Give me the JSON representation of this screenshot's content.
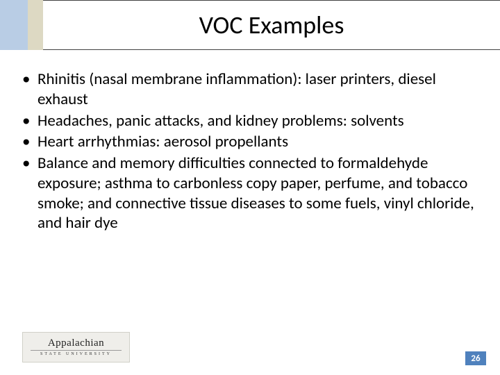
{
  "header": {
    "title": "VOC Examples",
    "colors": {
      "left_strip_blue": "#b9cde5",
      "left_strip_tan": "#ddd9c3",
      "border": "#404040"
    },
    "title_fontsize": 36
  },
  "bullets": [
    "Rhinitis (nasal membrane inflammation):  laser printers, diesel exhaust",
    "Headaches, panic attacks, and kidney problems:  solvents",
    "Heart arrhythmias:  aerosol propellants",
    "Balance and memory difficulties connected to formaldehyde exposure; asthma to carbonless copy paper, perfume, and tobacco smoke; and connective tissue diseases to some fuels, vinyl chloride, and hair dye"
  ],
  "body_fontsize": 23,
  "logo": {
    "name": "Appalachian",
    "subtitle": "STATE UNIVERSITY",
    "background": "#efeeea"
  },
  "page_number": {
    "value": "26",
    "background": "#4f81bd",
    "color": "#ffffff"
  }
}
